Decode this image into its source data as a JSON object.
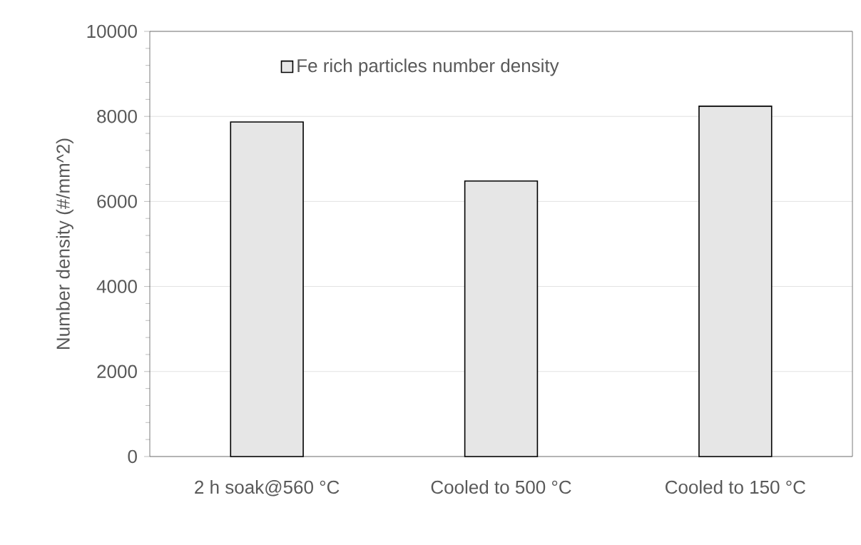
{
  "chart_data": {
    "type": "bar",
    "ylabel": "Number density (#/mm^2)",
    "categories": [
      "2 h soak@560 °C",
      "Cooled to 500 °C",
      "Cooled to 150 °C"
    ],
    "series": [
      {
        "name": "Fe rich particles number density",
        "color": "#e6e6e6",
        "values": [
          7870,
          6480,
          8240
        ]
      }
    ],
    "ylim": [
      0,
      10000
    ],
    "yticks": [
      0,
      2000,
      4000,
      6000,
      8000,
      10000
    ],
    "grid": "y",
    "legend": "top"
  }
}
